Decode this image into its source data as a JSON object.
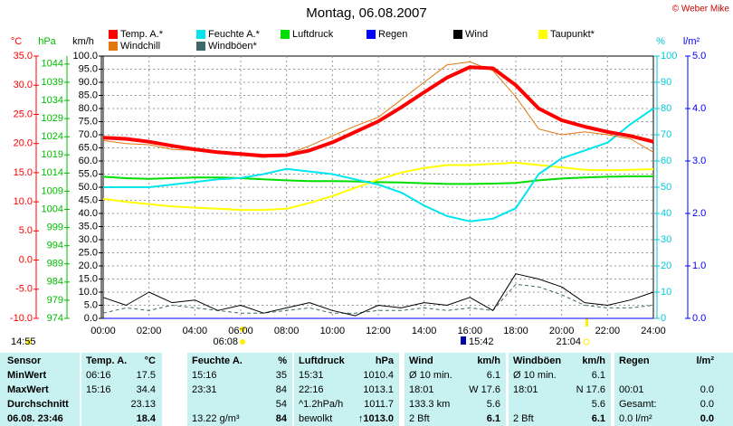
{
  "chart_data": {
    "type": "line",
    "title": "Montag, 06.08.2007",
    "credit": "© Weber Mike",
    "categories": [
      "00:00",
      null,
      "02:00",
      null,
      "04:00",
      null,
      "06:00",
      null,
      "08:00",
      null,
      "10:00",
      null,
      "12:00",
      null,
      "14:00",
      null,
      "16:00",
      null,
      "18:00",
      null,
      "20:00",
      null,
      "22:00",
      null,
      "24:00"
    ],
    "ylabel": "km/h",
    "ylim": [
      0,
      100
    ],
    "yticks": [
      {
        "value": 0,
        "label": "0.0"
      },
      {
        "value": 5,
        "label": "5.0"
      },
      {
        "value": 10,
        "label": "10.0"
      },
      {
        "value": 15,
        "label": "15.0"
      },
      {
        "value": 20,
        "label": "20.0"
      },
      {
        "value": 25,
        "label": "25.0"
      },
      {
        "value": 30,
        "label": "30.0"
      },
      {
        "value": 35,
        "label": "35.0"
      },
      {
        "value": 40,
        "label": "40.0"
      },
      {
        "value": 45,
        "label": "45.0"
      },
      {
        "value": 50,
        "label": "50.0"
      },
      {
        "value": 55,
        "label": "55.0"
      },
      {
        "value": 60,
        "label": "60.0"
      },
      {
        "value": 65,
        "label": "65.0"
      },
      {
        "value": 70,
        "label": "70.0"
      },
      {
        "value": 75,
        "label": "75.0"
      },
      {
        "value": 80,
        "label": "80.0"
      },
      {
        "value": 85,
        "label": "85.0"
      },
      {
        "value": 90,
        "label": "90.0"
      },
      {
        "value": 95,
        "label": "95.0"
      },
      {
        "value": 100,
        "label": "100.0"
      }
    ],
    "y2label": "%",
    "y2lim": [
      0,
      100
    ],
    "y2ticks": [
      0,
      10,
      20,
      30,
      40,
      50,
      60,
      70,
      80,
      90,
      100
    ],
    "y3label": "°C",
    "y3lim": [
      -10,
      35
    ],
    "y3ticks": [
      {
        "value": -10,
        "label": "-10.0"
      },
      {
        "value": -5,
        "label": "-5.0"
      },
      {
        "value": 0,
        "label": "0.0"
      },
      {
        "value": 5,
        "label": "5.0"
      },
      {
        "value": 10,
        "label": "10.0"
      },
      {
        "value": 15,
        "label": "15.0"
      },
      {
        "value": 20,
        "label": "20.0"
      },
      {
        "value": 25,
        "label": "25.0"
      },
      {
        "value": 30,
        "label": "30.0"
      },
      {
        "value": 35,
        "label": "35.0"
      }
    ],
    "y4label": "hPa",
    "y4lim": [
      974,
      1046.2
    ],
    "y4ticks": [
      974,
      979,
      984,
      989,
      994,
      999,
      1004,
      1009,
      1014,
      1019,
      1024,
      1029,
      1034,
      1039,
      1044
    ],
    "y5label": "l/m²",
    "y5lim": [
      0,
      5
    ],
    "y5ticks": [
      {
        "value": 0,
        "label": "0.0"
      },
      {
        "value": 1,
        "label": "1.0"
      },
      {
        "value": 2,
        "label": "2.0"
      },
      {
        "value": 3,
        "label": "3.0"
      },
      {
        "value": 4,
        "label": "4.0"
      },
      {
        "value": 5,
        "label": "5.0"
      }
    ],
    "grid": true,
    "series": [
      {
        "name": "Windböen*",
        "color": "#406868",
        "axis": "y",
        "values": [
          2,
          4,
          3,
          5,
          4,
          3,
          2,
          2,
          3,
          4,
          2,
          2,
          3,
          3,
          4,
          3,
          4,
          3,
          13,
          12,
          9,
          5,
          4,
          4,
          5
        ]
      },
      {
        "name": "Wind",
        "color": "#000000",
        "axis": "y",
        "values": [
          8,
          5,
          10,
          6,
          7,
          3,
          5,
          2,
          4,
          6,
          3,
          1,
          5,
          4,
          6,
          5,
          8,
          3,
          17,
          15,
          12,
          6,
          5,
          7,
          10
        ]
      },
      {
        "name": "Regen",
        "color": "#0000ff",
        "axis": "y5",
        "values": [
          0,
          0,
          0,
          0,
          0,
          0,
          0,
          0,
          0,
          0,
          0,
          0,
          0,
          0,
          0,
          0,
          0,
          0,
          0,
          0,
          0,
          0,
          0,
          0,
          0
        ]
      },
      {
        "name": "Luftdruck",
        "color": "#00dd00",
        "axis": "y4",
        "values": [
          1013.0,
          1012.6,
          1012.4,
          1012.6,
          1012.8,
          1012.8,
          1012.6,
          1012.3,
          1012.0,
          1011.8,
          1011.8,
          1011.7,
          1011.5,
          1011.4,
          1011.2,
          1011.0,
          1011.0,
          1011.1,
          1011.3,
          1012.0,
          1012.5,
          1012.8,
          1013.0,
          1013.1,
          1013.1
        ]
      },
      {
        "name": "Taupunkt*",
        "color": "#ffff00",
        "axis": "y3",
        "values": [
          10.5,
          10.0,
          9.6,
          9.2,
          9.0,
          8.8,
          8.6,
          8.6,
          8.8,
          9.8,
          11.0,
          12.4,
          13.8,
          15.0,
          15.8,
          16.3,
          16.3,
          16.5,
          16.7,
          16.3,
          15.9,
          15.5,
          15.4,
          15.5,
          15.6
        ]
      },
      {
        "name": "Feuchte A.*",
        "color": "#00e5ee",
        "axis": "y2",
        "values": [
          50,
          50,
          50,
          51,
          52,
          53,
          53.5,
          55,
          57,
          56,
          55,
          53,
          51,
          48,
          43,
          39,
          37,
          38,
          42,
          55,
          61,
          64,
          67,
          74,
          80
        ]
      },
      {
        "name": "Windchill",
        "color": "#e07810",
        "axis": "y3",
        "values": [
          20.5,
          20.0,
          19.8,
          19.0,
          18.8,
          18.3,
          18.0,
          17.6,
          18.1,
          19.6,
          21.3,
          23.0,
          24.5,
          27.5,
          30.5,
          33.5,
          34.0,
          32.5,
          28.0,
          22.5,
          21.5,
          22.0,
          21.5,
          20.8,
          18.5
        ]
      },
      {
        "name": "Temp. A.*",
        "color": "#ff0000",
        "axis": "y3",
        "values": [
          21.0,
          20.8,
          20.3,
          19.6,
          19.0,
          18.5,
          18.2,
          17.9,
          18.0,
          18.8,
          20.2,
          22.0,
          23.8,
          26.2,
          28.8,
          31.3,
          33.1,
          32.9,
          30.0,
          26.0,
          24.0,
          22.9,
          22.0,
          21.3,
          20.3
        ]
      }
    ]
  },
  "time_markers": [
    "14:55",
    "06:08",
    "15:42",
    "21:04"
  ],
  "table": {
    "header": [
      "Sensor",
      "Temp. A.",
      "°C",
      "Feuchte A.",
      "%",
      "Luftdruck",
      "hPa",
      "Wind",
      "km/h",
      "Windböen",
      "km/h",
      "Regen",
      "l/m²"
    ],
    "rows": [
      [
        "MinWert",
        "06:16",
        "17.5",
        "15:16",
        "35",
        "15:31",
        "1010.4",
        "Ø 10 min.",
        "6.1",
        "Ø 10 min.",
        "6.1",
        null,
        null
      ],
      [
        "MaxWert",
        "15:16",
        "34.4",
        "23:31",
        "84",
        "22:16",
        "1013.1",
        "18:01",
        "W 17.6",
        "18:01",
        "N 17.6",
        "00:01",
        "0.0"
      ],
      [
        "Durchschnitt",
        null,
        "23.13",
        null,
        "54",
        "^1.2hPa/h",
        "1011.7",
        "133.3 km",
        "5.6",
        null,
        "5.6",
        "Gesamt:",
        "0.0"
      ],
      [
        "06.08. 23:46",
        null,
        "18.4",
        "13.22 g/m³",
        "84",
        "bewolkt",
        "↑1013.0",
        "2 Bft",
        "6.1",
        "2 Bft",
        "6.1",
        "0.0 l/m²",
        "0.0"
      ]
    ]
  }
}
